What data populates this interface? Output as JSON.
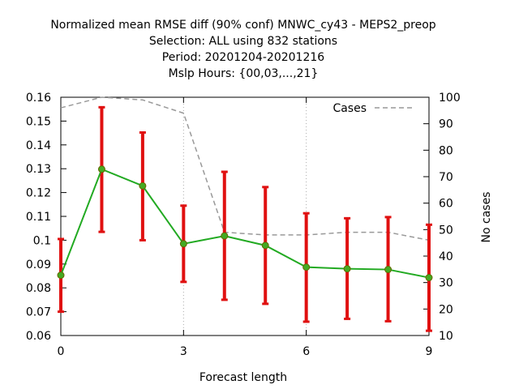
{
  "chart_data": {
    "type": "line",
    "title_lines": [
      "Normalized mean RMSE diff (90% conf) MNWC_cy43 - MEPS2_preop",
      "Selection: ALL using   832 stations",
      "Period: 20201204-20201216",
      "Mslp   Hours: {00,03,...,21}"
    ],
    "xlabel": "Forecast length",
    "y2label": "No cases",
    "xlim": [
      0,
      9
    ],
    "ylim": [
      0.06,
      0.16
    ],
    "y2lim": [
      10,
      100
    ],
    "x_ticks": [
      0,
      3,
      6,
      9
    ],
    "y_ticks": [
      0.06,
      0.07,
      0.08,
      0.09,
      0.1,
      0.11,
      0.12,
      0.13,
      0.14,
      0.15,
      0.16
    ],
    "y_tick_labels": [
      "0.06",
      "0.07",
      "0.08",
      "0.09",
      "0.1",
      "0.11",
      "0.12",
      "0.13",
      "0.14",
      "0.15",
      "0.16"
    ],
    "y2_ticks": [
      10,
      20,
      30,
      40,
      50,
      60,
      70,
      80,
      90,
      100
    ],
    "grid": true,
    "legend_position": "top-right",
    "series": [
      {
        "name": "",
        "kind": "line_with_errorbars",
        "color": "#22aa22",
        "errorbar_color": "#e01010",
        "x": [
          0,
          1,
          2,
          3,
          4,
          5,
          6,
          7,
          8,
          9
        ],
        "values": [
          0.0853,
          0.1298,
          0.1228,
          0.0985,
          0.1018,
          0.0978,
          0.0887,
          0.088,
          0.0877,
          0.0843
        ],
        "lower": [
          0.07,
          0.1035,
          0.1,
          0.0825,
          0.075,
          0.0733,
          0.0658,
          0.067,
          0.066,
          0.062
        ],
        "upper": [
          0.1005,
          0.1558,
          0.1452,
          0.1145,
          0.1287,
          0.1223,
          0.1113,
          0.1092,
          0.1097,
          0.1065
        ]
      },
      {
        "name": "Cases",
        "kind": "dashed_line",
        "axis": "y2",
        "color": "#999999",
        "x": [
          0,
          1,
          2,
          3,
          4,
          5,
          6,
          7,
          8,
          9
        ],
        "values": [
          96,
          100,
          99,
          94,
          49,
          48,
          48,
          49,
          49,
          46
        ]
      }
    ]
  }
}
